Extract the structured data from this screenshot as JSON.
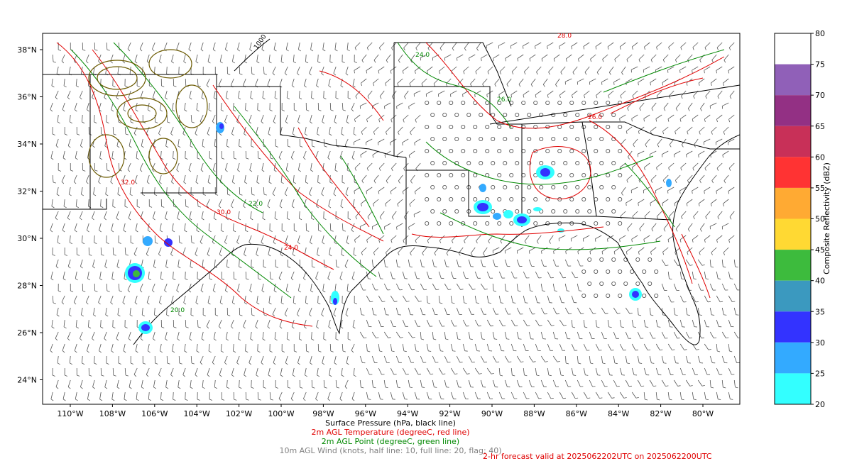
{
  "map": {
    "lon_ticks": [
      "110°W",
      "108°W",
      "106°W",
      "104°W",
      "102°W",
      "100°W",
      "98°W",
      "96°W",
      "94°W",
      "92°W",
      "90°W",
      "88°W",
      "86°W",
      "84°W",
      "82°W",
      "80°W"
    ],
    "lat_ticks": [
      "38°N",
      "36°N",
      "34°N",
      "32°N",
      "30°N",
      "28°N",
      "26°N",
      "24°N"
    ],
    "contour_labels": {
      "pressure": [
        "1000"
      ],
      "temperature": [
        "28.0",
        "30.0",
        "32.0",
        "26.0",
        "24.0"
      ],
      "dewpoint": [
        "24.0",
        "22.0",
        "20.0",
        "26.0"
      ]
    }
  },
  "colorbar": {
    "title": "Composite Reflectivity (dBZ)",
    "ticks": [
      "80",
      "75",
      "70",
      "65",
      "60",
      "55",
      "50",
      "45",
      "40",
      "35",
      "30",
      "25",
      "20"
    ],
    "bins": [
      {
        "from": 75,
        "to": 80,
        "color": "#ffffff"
      },
      {
        "from": 70,
        "to": 75,
        "color": "#9060b8"
      },
      {
        "from": 65,
        "to": 70,
        "color": "#933084"
      },
      {
        "from": 60,
        "to": 65,
        "color": "#c83058"
      },
      {
        "from": 55,
        "to": 60,
        "color": "#ff3333"
      },
      {
        "from": 50,
        "to": 55,
        "color": "#ffaa33"
      },
      {
        "from": 45,
        "to": 50,
        "color": "#ffd933"
      },
      {
        "from": 40,
        "to": 45,
        "color": "#3dbb3d"
      },
      {
        "from": 35,
        "to": 40,
        "color": "#3b99bf"
      },
      {
        "from": 30,
        "to": 35,
        "color": "#3333ff"
      },
      {
        "from": 25,
        "to": 30,
        "color": "#33aaff"
      },
      {
        "from": 20,
        "to": 25,
        "color": "#33ffff"
      }
    ]
  },
  "captions": {
    "pressure": "Surface Pressure (hPa, black line)",
    "temperature": "2m AGL Temperature (degreeC, red line)",
    "dewpoint": "2m AGL Point (degreeC, green line)",
    "wind": "10m AGL Wind (knots, half line: 10, full line: 20, flag: 40)",
    "valid": "2-hr forecast valid at 2025062202UTC on 2025062200UTC"
  },
  "colors": {
    "pressure": "#000000",
    "temperature": "#e00000",
    "dewpoint": "#008800",
    "wind": "#555555",
    "coast": "#000000"
  }
}
